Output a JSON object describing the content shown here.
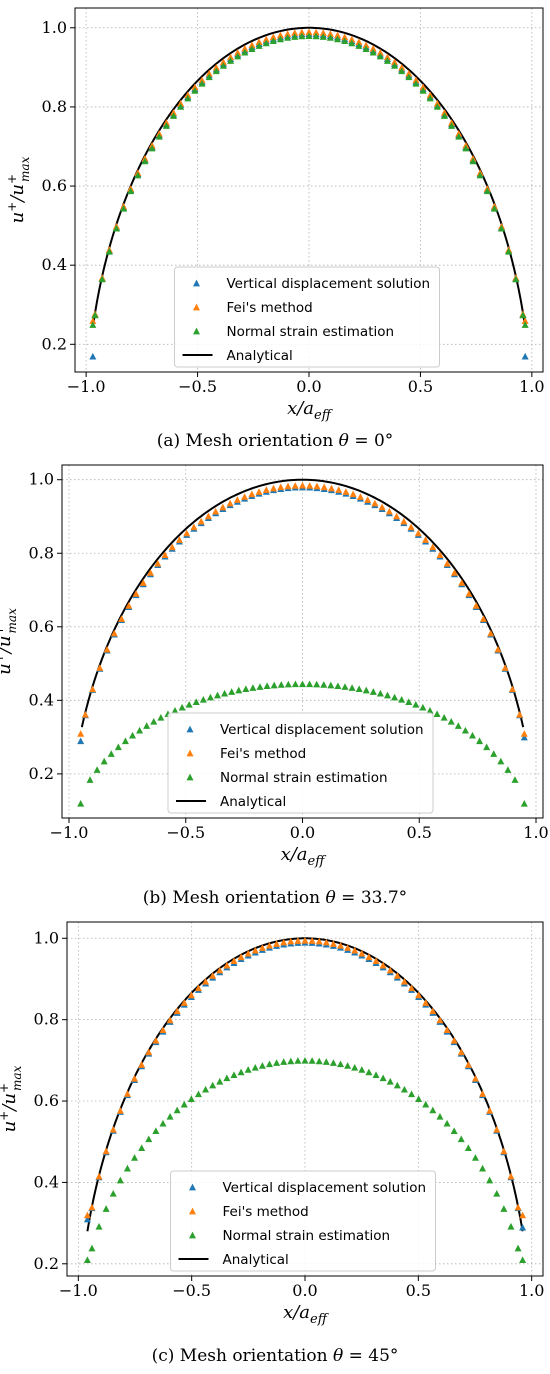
{
  "captions": [
    {
      "prefix": "(a) Mesh orientation ",
      "theta": "θ",
      "value": " = 0°"
    },
    {
      "prefix": "(b) Mesh orientation ",
      "theta": "θ",
      "value": " = 33.7°"
    },
    {
      "prefix": "(c) Mesh orientation ",
      "theta": "θ",
      "value": " = 45°"
    }
  ],
  "colors": {
    "vertical": "#1f77b4",
    "fei": "#ff7f0e",
    "normal": "#2ca02c",
    "analytical": "#000000"
  },
  "chart_data": [
    {
      "type": "scatter",
      "xlabel": "x/a_eff",
      "ylabel": "u+/u+max",
      "xlim": [
        -1.05,
        1.05
      ],
      "ylim": [
        0.13,
        1.05
      ],
      "xticks": [
        "−1.0",
        "−0.5",
        "0.0",
        "0.5",
        "1.0"
      ],
      "xtick_values": [
        -1.0,
        -0.5,
        0.0,
        0.5,
        1.0
      ],
      "yticks": [
        "0.2",
        "0.4",
        "0.6",
        "0.8",
        "1.0"
      ],
      "ytick_values": [
        0.2,
        0.4,
        0.6,
        0.8,
        1.0
      ],
      "grid": true,
      "legend_position": "bottom-center",
      "series": [
        {
          "name": "Vertical displacement solution",
          "model": "scaled",
          "scale": 0.985,
          "xmax": 0.96,
          "endpoints": [
            [
              -0.97,
              0.17
            ],
            [
              0.97,
              0.17
            ]
          ]
        },
        {
          "name": "Fei's method",
          "model": "scaled",
          "scale": 0.99,
          "xmax": 0.96,
          "endpoints": [
            [
              -0.97,
              0.26
            ],
            [
              0.97,
              0.26
            ]
          ]
        },
        {
          "name": "Normal strain estimation",
          "model": "scaled",
          "scale": 0.98,
          "xmax": 0.96,
          "endpoints": [
            [
              -0.97,
              0.25
            ],
            [
              0.97,
              0.25
            ]
          ]
        },
        {
          "name": "Analytical",
          "model": "line",
          "xmax": 0.97
        }
      ]
    },
    {
      "type": "scatter",
      "xlabel": "x/a_eff",
      "ylabel": "u+/u+max",
      "xlim": [
        -1.03,
        1.03
      ],
      "ylim": [
        0.08,
        1.04
      ],
      "xticks": [
        "−1.0",
        "−0.5",
        "0.0",
        "0.5",
        "1.0"
      ],
      "xtick_values": [
        -1.0,
        -0.5,
        0.0,
        0.5,
        1.0
      ],
      "yticks": [
        "0.2",
        "0.4",
        "0.6",
        "0.8",
        "1.0"
      ],
      "ytick_values": [
        0.2,
        0.4,
        0.6,
        0.8,
        1.0
      ],
      "grid": true,
      "legend_position": "bottom-center",
      "series": [
        {
          "name": "Vertical displacement solution",
          "model": "scaled",
          "scale": 0.98,
          "xmax": 0.93,
          "endpoints": [
            [
              -0.95,
              0.29
            ],
            [
              0.95,
              0.3
            ]
          ]
        },
        {
          "name": "Fei's method",
          "model": "scaled",
          "scale": 0.985,
          "xmax": 0.93,
          "endpoints": [
            [
              -0.95,
              0.31
            ],
            [
              0.95,
              0.31
            ]
          ]
        },
        {
          "name": "Normal strain estimation",
          "model": "scaled",
          "scale": 0.445,
          "xmax": 0.91,
          "endpoints": [
            [
              -0.95,
              0.12
            ],
            [
              0.95,
              0.12
            ]
          ]
        },
        {
          "name": "Analytical",
          "model": "line",
          "xmax": 0.945
        }
      ]
    },
    {
      "type": "scatter",
      "xlabel": "x/a_eff",
      "ylabel": "u+/u+max",
      "xlim": [
        -1.05,
        1.05
      ],
      "ylim": [
        0.17,
        1.04
      ],
      "xticks": [
        "−1.0",
        "−0.5",
        "0.0",
        "0.5",
        "1.0"
      ],
      "xtick_values": [
        -1.0,
        -0.5,
        0.0,
        0.5,
        1.0
      ],
      "yticks": [
        "0.2",
        "0.4",
        "0.6",
        "0.8",
        "1.0"
      ],
      "ytick_values": [
        0.2,
        0.4,
        0.6,
        0.8,
        1.0
      ],
      "grid": true,
      "legend_position": "bottom-center",
      "series": [
        {
          "name": "Vertical displacement solution",
          "model": "scaled",
          "scale": 0.99,
          "xmax": 0.94,
          "endpoints": [
            [
              -0.96,
              0.31
            ],
            [
              0.96,
              0.29
            ]
          ]
        },
        {
          "name": "Fei's method",
          "model": "scaled",
          "scale": 0.995,
          "xmax": 0.94,
          "endpoints": [
            [
              -0.96,
              0.32
            ],
            [
              0.96,
              0.32
            ]
          ]
        },
        {
          "name": "Normal strain estimation",
          "model": "scaled",
          "scale": 0.7,
          "xmax": 0.94,
          "endpoints": [
            [
              -0.96,
              0.21
            ],
            [
              0.96,
              0.21
            ]
          ]
        },
        {
          "name": "Analytical",
          "model": "line",
          "xmax": 0.96
        }
      ]
    }
  ]
}
